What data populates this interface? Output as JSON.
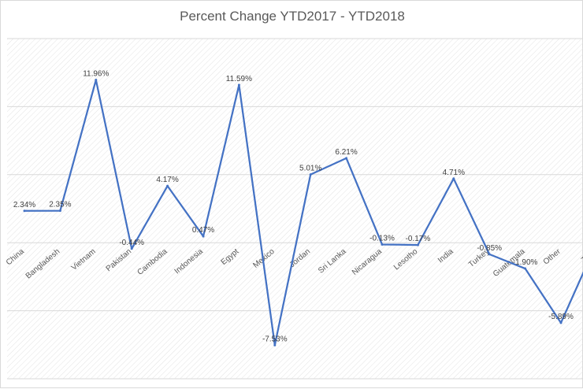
{
  "chart_data": {
    "type": "line",
    "title": "Percent Change YTD2017 - YTD2018",
    "xlabel": "",
    "ylabel": "",
    "ylim": [
      -10,
      15
    ],
    "grid": true,
    "legend": "none",
    "categories": [
      "China",
      "Bangladesh",
      "Vietnam",
      "Pakistan",
      "Cambodia",
      "Indonesia",
      "Egypt",
      "Mexico",
      "Jordan",
      "Sri Lanka",
      "Nicaragua",
      "Lesotho",
      "India",
      "Turkey",
      "Guatemala",
      "Other",
      "Total"
    ],
    "series": [
      {
        "values": [
          2.34,
          2.35,
          11.96,
          -0.44,
          4.17,
          0.47,
          11.59,
          -7.53,
          5.01,
          6.21,
          -0.13,
          -0.17,
          4.71,
          -0.85,
          -1.9,
          -5.89,
          0.0
        ],
        "labels": [
          "2.34%",
          "2.35%",
          "11.96%",
          "-0.44%",
          "4.17%",
          "0.47%",
          "11.59%",
          "-7.53%",
          "5.01%",
          "6.21%",
          "-0.13%",
          "-0.17%",
          "4.71%",
          "-0.85%",
          "-1.90%",
          "-5.89%",
          ""
        ]
      }
    ],
    "line_color": "#4472c4"
  }
}
